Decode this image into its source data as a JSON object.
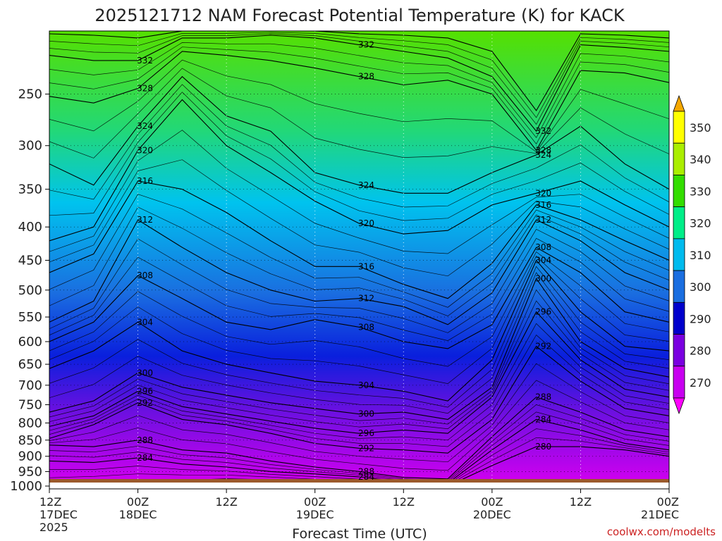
{
  "chart_data": {
    "type": "heatmap",
    "title": "2025121712 NAM Forecast Potential Temperature (K) for KACK",
    "xlabel": "Forecast Time (UTC)",
    "credit": "coolwx.com/modelts",
    "x_ticks": [
      {
        "hour": 0,
        "line1": "12Z",
        "line2": "17DEC",
        "line3": "2025"
      },
      {
        "hour": 12,
        "line1": "00Z",
        "line2": "18DEC",
        "line3": ""
      },
      {
        "hour": 24,
        "line1": "12Z",
        "line2": "",
        "line3": ""
      },
      {
        "hour": 36,
        "line1": "00Z",
        "line2": "19DEC",
        "line3": ""
      },
      {
        "hour": 48,
        "line1": "12Z",
        "line2": "",
        "line3": ""
      },
      {
        "hour": 60,
        "line1": "00Z",
        "line2": "20DEC",
        "line3": ""
      },
      {
        "hour": 72,
        "line1": "12Z",
        "line2": "",
        "line3": ""
      },
      {
        "hour": 84,
        "line1": "00Z",
        "line2": "21DEC",
        "line3": ""
      }
    ],
    "y_ticks": [
      250,
      300,
      350,
      400,
      450,
      500,
      550,
      600,
      650,
      700,
      750,
      800,
      850,
      900,
      950,
      1000
    ],
    "yrange": [
      200,
      1010
    ],
    "y_scale": "log",
    "colorbar": {
      "labels": [
        350,
        340,
        330,
        320,
        310,
        300,
        290,
        280,
        270
      ],
      "colors": [
        "#f5a800",
        "#ffff00",
        "#aaee00",
        "#33dd00",
        "#00ee88",
        "#00bbee",
        "#1a6ee0",
        "#0000cc",
        "#7a00e0",
        "#c800f0",
        "#ff00ff"
      ]
    },
    "time_hours": [
      0,
      6,
      12,
      18,
      24,
      30,
      36,
      42,
      48,
      54,
      60,
      66,
      72,
      78,
      84
    ],
    "contours": [
      {
        "theta": 280,
        "label": "280",
        "p": [
          1000,
          990,
          985,
          980,
          975,
          978,
          985,
          992,
          1000,
          1000,
          930,
          870,
          870,
          880,
          900
        ]
      },
      {
        "theta": 284,
        "label": "284",
        "p": [
          915,
          920,
          905,
          925,
          935,
          950,
          958,
          968,
          985,
          990,
          880,
          790,
          820,
          860,
          880
        ]
      },
      {
        "theta": 288,
        "label": "288",
        "p": [
          865,
          870,
          850,
          880,
          890,
          915,
          935,
          950,
          970,
          975,
          840,
          730,
          770,
          820,
          840
        ]
      },
      {
        "theta": 292,
        "label": "292",
        "p": [
          845,
          805,
          745,
          790,
          805,
          830,
          860,
          875,
          880,
          890,
          790,
          610,
          690,
          760,
          780
        ]
      },
      {
        "theta": 296,
        "label": "296",
        "p": [
          810,
          780,
          715,
          755,
          775,
          795,
          815,
          830,
          820,
          830,
          730,
          540,
          640,
          710,
          730
        ]
      },
      {
        "theta": 300,
        "label": "300",
        "p": [
          770,
          740,
          670,
          705,
          725,
          745,
          760,
          775,
          770,
          790,
          705,
          480,
          600,
          660,
          680
        ]
      },
      {
        "theta": 304,
        "label": "304",
        "p": [
          660,
          620,
          560,
          620,
          650,
          670,
          690,
          700,
          715,
          740,
          640,
          450,
          540,
          610,
          620
        ]
      },
      {
        "theta": 308,
        "label": "308",
        "p": [
          600,
          560,
          475,
          515,
          560,
          575,
          555,
          570,
          600,
          615,
          565,
          430,
          470,
          540,
          560
        ]
      },
      {
        "theta": 312,
        "label": "312",
        "p": [
          560,
          520,
          390,
          430,
          470,
          500,
          520,
          515,
          530,
          565,
          505,
          390,
          420,
          470,
          500
        ]
      },
      {
        "theta": 316,
        "label": "316",
        "p": [
          470,
          440,
          340,
          350,
          380,
          420,
          460,
          460,
          490,
          515,
          455,
          370,
          390,
          420,
          450
        ]
      },
      {
        "theta": 320,
        "label": "320",
        "p": [
          420,
          400,
          305,
          255,
          300,
          330,
          365,
          395,
          410,
          405,
          370,
          355,
          340,
          370,
          400
        ]
      },
      {
        "theta": 324,
        "label": "324",
        "p": [
          320,
          345,
          280,
          235,
          270,
          285,
          330,
          345,
          355,
          355,
          330,
          310,
          280,
          320,
          350
        ]
      },
      {
        "theta": 328,
        "label": "328",
        "p": [
          252,
          258,
          245,
          215,
          218,
          222,
          228,
          235,
          242,
          238,
          250,
          305,
          230,
          232,
          240
        ]
      },
      {
        "theta": 332,
        "label": "332",
        "p": [
          218,
          222,
          222,
          205,
          205,
          203,
          205,
          210,
          215,
          220,
          235,
          285,
          210,
          212,
          215
        ]
      },
      {
        "theta": 336,
        "label": "",
        "p": [
          202,
          203,
          205,
          200,
          200,
          200,
          200,
          202,
          203,
          205,
          215,
          265,
          202,
          203,
          205
        ]
      }
    ]
  }
}
